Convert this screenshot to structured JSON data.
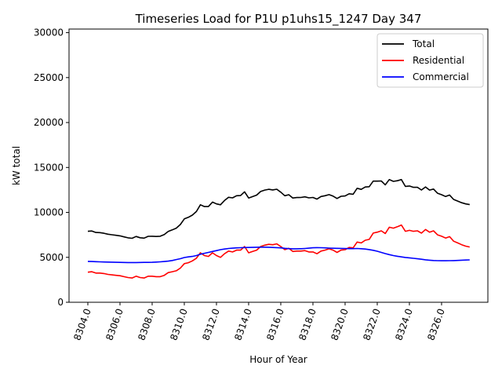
{
  "chart_data": {
    "type": "line",
    "title": "Timeseries Load for P1U p1uhs15_1247  Day 347",
    "xlabel": "Hour of Year",
    "ylabel": "kW total",
    "xlim": [
      8302.83,
      8328.88
    ],
    "ylim": [
      0,
      30400
    ],
    "x_start": 8304.0,
    "x_step": 0.25,
    "xticks": [
      8304,
      8306,
      8308,
      8310,
      8312,
      8314,
      8316,
      8318,
      8320,
      8322,
      8324,
      8326
    ],
    "xtick_labels": [
      "8304.0",
      "8306.0",
      "8308.0",
      "8310.0",
      "8312.0",
      "8314.0",
      "8316.0",
      "8318.0",
      "8320.0",
      "8322.0",
      "8324.0",
      "8326.0"
    ],
    "yticks": [
      0,
      5000,
      10000,
      15000,
      20000,
      25000,
      30000
    ],
    "ytick_labels": [
      "0",
      "5000",
      "10000",
      "15000",
      "20000",
      "25000",
      "30000"
    ],
    "grid": false,
    "legend_position": "top-right",
    "series": [
      {
        "name": "Total",
        "color": "#000000",
        "values": null
      },
      {
        "name": "Residential",
        "color": "#ff0000",
        "values": [
          3350,
          3400,
          3250,
          3250,
          3200,
          3100,
          3050,
          3000,
          2950,
          2850,
          2750,
          2700,
          2900,
          2750,
          2700,
          2900,
          2900,
          2850,
          2850,
          3000,
          3300,
          3400,
          3500,
          3800,
          4300,
          4400,
          4600,
          4900,
          5500,
          5200,
          5100,
          5500,
          5200,
          5000,
          5400,
          5700,
          5600,
          5800,
          5800,
          6200,
          5500,
          5650,
          5800,
          6200,
          6350,
          6450,
          6400,
          6500,
          6200,
          5850,
          6000,
          5650,
          5700,
          5700,
          5750,
          5600,
          5600,
          5400,
          5700,
          5800,
          5950,
          5800,
          5550,
          5800,
          5850,
          6100,
          6050,
          6700,
          6600,
          6900,
          7000,
          7700,
          7800,
          7950,
          7650,
          8350,
          8250,
          8400,
          8600,
          7900,
          8000,
          7900,
          7950,
          7700,
          8100,
          7800,
          7950,
          7500,
          7350,
          7150,
          7300,
          6800,
          6600,
          6400,
          6250,
          6150
        ]
      },
      {
        "name": "Commercial",
        "color": "#0000ff",
        "values": [
          4550,
          4530,
          4520,
          4500,
          4480,
          4470,
          4460,
          4450,
          4440,
          4430,
          4420,
          4420,
          4420,
          4430,
          4440,
          4440,
          4450,
          4470,
          4500,
          4530,
          4580,
          4650,
          4750,
          4850,
          4980,
          5050,
          5100,
          5200,
          5350,
          5450,
          5550,
          5650,
          5750,
          5850,
          5920,
          5980,
          6020,
          6050,
          6070,
          6090,
          6100,
          6110,
          6120,
          6130,
          6130,
          6120,
          6100,
          6080,
          6050,
          6000,
          5970,
          5950,
          5950,
          5960,
          5980,
          6020,
          6060,
          6080,
          6070,
          6050,
          6030,
          6010,
          6000,
          5990,
          5980,
          5970,
          5970,
          5980,
          5960,
          5920,
          5860,
          5780,
          5680,
          5550,
          5420,
          5300,
          5200,
          5120,
          5050,
          4990,
          4940,
          4890,
          4840,
          4790,
          4730,
          4680,
          4650,
          4630,
          4620,
          4620,
          4630,
          4640,
          4660,
          4680,
          4700,
          4720
        ]
      }
    ]
  }
}
